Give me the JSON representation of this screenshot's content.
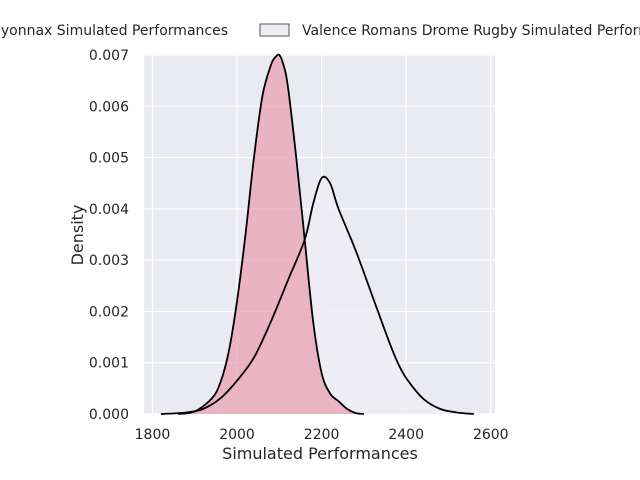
{
  "chart_data": {
    "type": "area",
    "title": "",
    "xlabel": "Simulated Performances",
    "ylabel": "Density",
    "xlim": [
      1780,
      2610
    ],
    "ylim": [
      0,
      0.007
    ],
    "xticks": [
      1800,
      2000,
      2200,
      2400,
      2600
    ],
    "xtick_labels": [
      "1800",
      "2000",
      "2200",
      "2400",
      "2600"
    ],
    "yticks": [
      0.0,
      0.001,
      0.002,
      0.003,
      0.004,
      0.005,
      0.006,
      0.007
    ],
    "ytick_labels": [
      "0.000",
      "0.001",
      "0.002",
      "0.003",
      "0.004",
      "0.005",
      "0.006",
      "0.007"
    ],
    "grid": true,
    "legend_position": "top",
    "series": [
      {
        "name": "Oyonnax Simulated Performances",
        "color": "#e8a0b4",
        "x": [
          1860,
          1900,
          1940,
          1960,
          1980,
          2000,
          2020,
          2040,
          2060,
          2080,
          2090,
          2100,
          2110,
          2120,
          2140,
          2160,
          2180,
          2200,
          2220,
          2240,
          2260,
          2280,
          2300
        ],
        "y": [
          0.0,
          5e-05,
          0.0003,
          0.0006,
          0.0012,
          0.0022,
          0.0035,
          0.005,
          0.0062,
          0.0068,
          0.00695,
          0.007,
          0.0068,
          0.0064,
          0.005,
          0.0034,
          0.0018,
          0.0008,
          0.0004,
          0.00025,
          0.0001,
          2e-05,
          0.0
        ]
      },
      {
        "name": "Valence Romans Drome Rugby Simulated Performances",
        "color": "#eeedf3",
        "x": [
          1820,
          1880,
          1920,
          1960,
          2000,
          2040,
          2080,
          2120,
          2160,
          2180,
          2200,
          2220,
          2240,
          2280,
          2320,
          2360,
          2380,
          2400,
          2440,
          2480,
          2520,
          2560
        ],
        "y": [
          0.0,
          3e-05,
          0.0001,
          0.0003,
          0.00065,
          0.0011,
          0.0018,
          0.0026,
          0.0034,
          0.0041,
          0.0046,
          0.0045,
          0.004,
          0.0032,
          0.0023,
          0.0014,
          0.001,
          0.0007,
          0.0003,
          0.0001,
          3e-05,
          0.0
        ]
      }
    ]
  }
}
